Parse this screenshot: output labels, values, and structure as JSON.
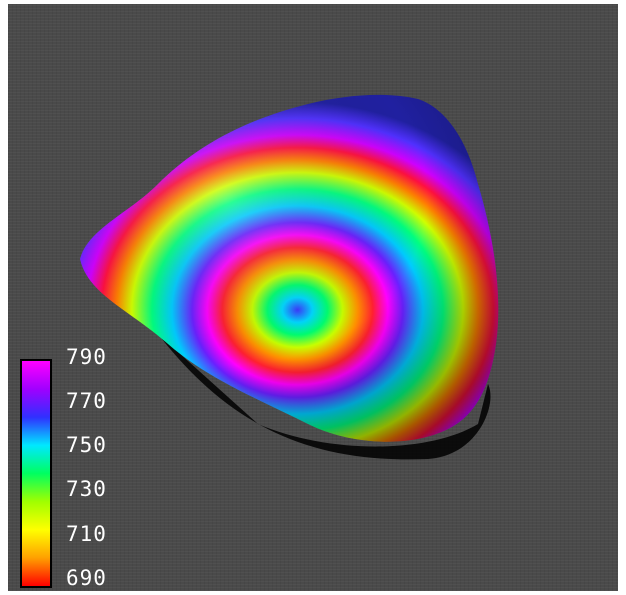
{
  "colorbar": {
    "ticks": [
      "790",
      "770",
      "750",
      "730",
      "710",
      "690"
    ],
    "colors": [
      "#ff00ff",
      "#a000ff",
      "#3030ff",
      "#00e8ff",
      "#00ff60",
      "#a0ff00",
      "#ffff00",
      "#ffa000",
      "#ff0000"
    ]
  },
  "scene": {
    "background": "#4a4a4a"
  }
}
